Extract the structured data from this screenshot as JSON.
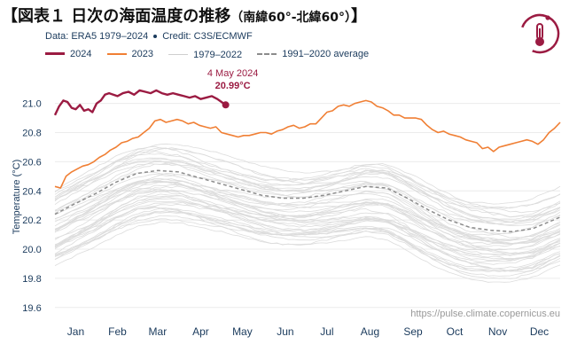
{
  "title": {
    "main": "【図表１ 日次の海面温度の推移",
    "sub": "（南緯60°-北緯60°）",
    "end": "】"
  },
  "meta": {
    "data_label": "Data: ERA5 1979–2024",
    "credit_label": "Credit: C3S/ECMWF"
  },
  "logo": {
    "icon": "thermometer-icon",
    "color": "#9b1b42"
  },
  "source_url": "https://pulse.climate.copernicus.eu",
  "colors": {
    "y2024": "#9b1b42",
    "y2023": "#f07f34",
    "history": "#dcdcdc",
    "average": "#8c8c8c",
    "text": "#1a3a5c"
  },
  "chart_data": {
    "type": "line",
    "title": "日次の海面温度の推移（南緯60°-北緯60°）",
    "xlabel": "",
    "ylabel": "Temperature (°C)",
    "ylim": [
      19.55,
      21.15
    ],
    "y_ticks": [
      19.6,
      19.8,
      20.0,
      20.2,
      20.4,
      20.6,
      20.8,
      21.0
    ],
    "y_tick_labels": [
      "19.6",
      "19.8",
      "20.0",
      "20.2",
      "20.4",
      "20.6",
      "20.8",
      "21.0"
    ],
    "x_unit": "day of year",
    "xlim": [
      1,
      365
    ],
    "months": [
      "Jan",
      "Feb",
      "Mar",
      "Apr",
      "May",
      "Jun",
      "Jul",
      "Aug",
      "Sep",
      "Oct",
      "Nov",
      "Dec"
    ],
    "month_centers": [
      16,
      46,
      75,
      106,
      136,
      167,
      197,
      228,
      259,
      289,
      320,
      350
    ],
    "legend": [
      "2024",
      "2023",
      "1979–2022",
      "1991–2020 average"
    ],
    "series": [
      {
        "name": "2024",
        "style": "solid-bold",
        "x": [
          1,
          4,
          7,
          10,
          13,
          16,
          19,
          22,
          25,
          28,
          31,
          34,
          37,
          40,
          43,
          46,
          50,
          54,
          58,
          62,
          66,
          70,
          74,
          78,
          82,
          86,
          90,
          94,
          98,
          102,
          106,
          110,
          114,
          118,
          121,
          124
        ],
        "values": [
          20.92,
          20.98,
          21.02,
          21.01,
          20.97,
          20.96,
          20.99,
          20.95,
          20.96,
          20.94,
          21.0,
          21.02,
          21.06,
          21.07,
          21.06,
          21.05,
          21.07,
          21.08,
          21.06,
          21.09,
          21.08,
          21.07,
          21.09,
          21.07,
          21.06,
          21.07,
          21.06,
          21.05,
          21.04,
          21.05,
          21.03,
          21.04,
          21.05,
          21.03,
          21.01,
          20.99
        ]
      },
      {
        "name": "2023",
        "style": "solid",
        "x": [
          1,
          5,
          9,
          13,
          17,
          21,
          25,
          29,
          33,
          37,
          41,
          45,
          49,
          53,
          57,
          61,
          65,
          69,
          73,
          77,
          81,
          85,
          89,
          93,
          97,
          101,
          105,
          109,
          113,
          117,
          121,
          125,
          129,
          133,
          137,
          141,
          145,
          149,
          153,
          157,
          161,
          165,
          169,
          173,
          177,
          181,
          185,
          189,
          193,
          197,
          201,
          205,
          209,
          213,
          217,
          221,
          225,
          229,
          233,
          237,
          241,
          245,
          249,
          253,
          257,
          261,
          265,
          269,
          273,
          277,
          281,
          285,
          289,
          293,
          297,
          301,
          305,
          309,
          313,
          317,
          321,
          325,
          329,
          333,
          337,
          341,
          345,
          349,
          353,
          357,
          361,
          365
        ],
        "values": [
          20.43,
          20.42,
          20.5,
          20.53,
          20.55,
          20.57,
          20.58,
          20.6,
          20.63,
          20.65,
          20.68,
          20.7,
          20.73,
          20.74,
          20.76,
          20.77,
          20.8,
          20.83,
          20.88,
          20.89,
          20.87,
          20.88,
          20.89,
          20.88,
          20.86,
          20.87,
          20.85,
          20.84,
          20.83,
          20.84,
          20.8,
          20.79,
          20.78,
          20.77,
          20.78,
          20.78,
          20.79,
          20.8,
          20.8,
          20.79,
          20.81,
          20.82,
          20.84,
          20.85,
          20.83,
          20.84,
          20.86,
          20.86,
          20.9,
          20.94,
          20.95,
          20.98,
          20.99,
          20.98,
          21.0,
          21.01,
          21.02,
          21.01,
          20.98,
          20.97,
          20.95,
          20.92,
          20.92,
          20.9,
          20.9,
          20.9,
          20.89,
          20.85,
          20.82,
          20.8,
          20.81,
          20.79,
          20.78,
          20.77,
          20.75,
          20.74,
          20.73,
          20.69,
          20.7,
          20.67,
          20.7,
          20.71,
          20.72,
          20.73,
          20.74,
          20.75,
          20.74,
          20.72,
          20.75,
          20.8,
          20.83,
          20.87
        ]
      },
      {
        "name": "1991–2020 average",
        "style": "dashed",
        "x": [
          1,
          15,
          30,
          45,
          60,
          75,
          90,
          105,
          120,
          135,
          150,
          165,
          180,
          195,
          210,
          225,
          240,
          255,
          270,
          285,
          300,
          315,
          330,
          345,
          360,
          365
        ],
        "values": [
          20.24,
          20.31,
          20.38,
          20.46,
          20.52,
          20.54,
          20.53,
          20.49,
          20.45,
          20.41,
          20.37,
          20.35,
          20.35,
          20.37,
          20.4,
          20.43,
          20.42,
          20.35,
          20.27,
          20.2,
          20.15,
          20.13,
          20.12,
          20.14,
          20.2,
          20.22
        ]
      }
    ]
  },
  "annotation": {
    "date": "4 May 2024",
    "value": "20.99°C"
  }
}
